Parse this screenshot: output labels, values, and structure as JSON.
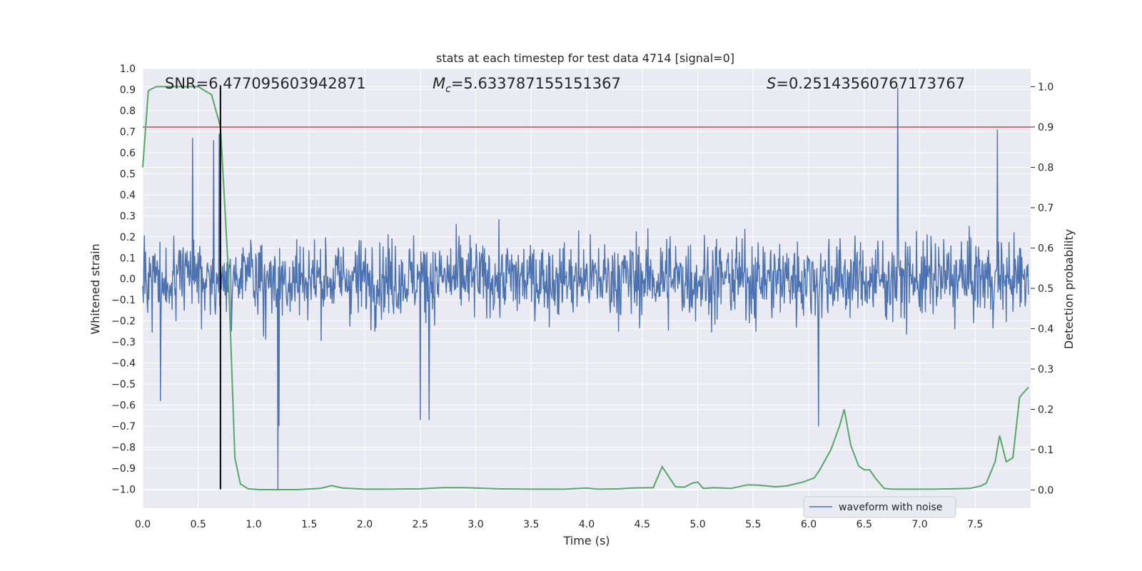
{
  "chart_data": {
    "type": "line",
    "title": "stats at each timestep for test data 4714 [signal=0]",
    "xlabel": "Time (s)",
    "ylabel_left": "Whitened strain",
    "ylabel_right": "Detection probability",
    "xlim": [
      0.0,
      8.0
    ],
    "ylim_left": [
      -1.09,
      1.0
    ],
    "ylim_right": [
      -0.045,
      1.045
    ],
    "x_ticks": [
      0.0,
      0.5,
      1.0,
      1.5,
      2.0,
      2.5,
      3.0,
      3.5,
      4.0,
      4.5,
      5.0,
      5.5,
      6.0,
      6.5,
      7.0,
      7.5
    ],
    "x_tick_labels": [
      "0.0",
      "0.5",
      "1.0",
      "1.5",
      "2.0",
      "2.5",
      "3.0",
      "3.5",
      "4.0",
      "4.5",
      "5.0",
      "5.5",
      "6.0",
      "6.5",
      "7.0",
      "7.5"
    ],
    "y_left_ticks": [
      1.0,
      0.9,
      0.8,
      0.7,
      0.6,
      0.5,
      0.4,
      0.3,
      0.2,
      0.1,
      0.0,
      -0.1,
      -0.2,
      -0.3,
      -0.4,
      -0.5,
      -0.6,
      -0.7,
      -0.8,
      -0.9,
      -1.0
    ],
    "y_left_tick_labels": [
      "1.0",
      "0.9",
      "0.8",
      "0.7",
      "0.6",
      "0.5",
      "0.4",
      "0.3",
      "0.2",
      "0.1",
      "0.0",
      "−0.1",
      "−0.2",
      "−0.3",
      "−0.4",
      "−0.5",
      "−0.6",
      "−0.7",
      "−0.8",
      "−0.9",
      "−1.0"
    ],
    "y_right_ticks": [
      1.0,
      0.9,
      0.8,
      0.7,
      0.6,
      0.5,
      0.4,
      0.3,
      0.2,
      0.1,
      0.0
    ],
    "y_right_tick_labels": [
      "1.0",
      "0.9",
      "0.8",
      "0.7",
      "0.6",
      "0.5",
      "0.4",
      "0.3",
      "0.2",
      "0.1",
      "0.0"
    ],
    "annotations": {
      "snr": "SNR=6.477095603942871",
      "mc_symbol": "M",
      "mc_sub": "c",
      "mc_value": "=5.633787155151367",
      "s_symbol": "S",
      "s_value": "=0.25143560767173767"
    },
    "legend": {
      "label": "waveform with noise",
      "location": "lower-right"
    },
    "waveform": {
      "name": "waveform with noise",
      "color": "#4c72b0",
      "samples": 1600,
      "amplitude_envelope": [
        0.0,
        0.42,
        0.42
      ],
      "notable_spikes": [
        {
          "x": 0.45,
          "y": 0.67
        },
        {
          "x": 0.64,
          "y": 0.66
        },
        {
          "x": 0.69,
          "y": 0.69
        },
        {
          "x": 1.22,
          "y": -1.0
        },
        {
          "x": 1.23,
          "y": -0.7
        },
        {
          "x": 0.16,
          "y": -0.58
        },
        {
          "x": 2.5,
          "y": -0.67
        },
        {
          "x": 2.58,
          "y": -0.67
        },
        {
          "x": 6.09,
          "y": -0.7
        },
        {
          "x": 6.8,
          "y": 0.91
        },
        {
          "x": 7.7,
          "y": 0.71
        }
      ]
    },
    "detection_probability": {
      "name": "detection probability",
      "color": "#55a868",
      "x": [
        0.0,
        0.05,
        0.12,
        0.2,
        0.3,
        0.4,
        0.5,
        0.56,
        0.62,
        0.7,
        0.77,
        0.83,
        0.88,
        0.95,
        1.05,
        1.2,
        1.4,
        1.6,
        1.7,
        1.8,
        2.0,
        2.2,
        2.5,
        2.7,
        2.9,
        3.0,
        3.2,
        3.5,
        3.8,
        4.0,
        4.1,
        4.3,
        4.4,
        4.6,
        4.68,
        4.8,
        4.88,
        4.95,
        5.0,
        5.05,
        5.15,
        5.3,
        5.45,
        5.55,
        5.7,
        5.8,
        5.95,
        6.05,
        6.1,
        6.2,
        6.28,
        6.32,
        6.38,
        6.45,
        6.5,
        6.55,
        6.6,
        6.68,
        6.75,
        6.9,
        7.1,
        7.3,
        7.45,
        7.55,
        7.6,
        7.68,
        7.72,
        7.78,
        7.84,
        7.9,
        7.98
      ],
      "y": [
        0.8,
        0.99,
        1.0,
        1.0,
        1.0,
        1.0,
        1.0,
        0.99,
        0.98,
        0.9,
        0.55,
        0.08,
        0.015,
        0.003,
        0.001,
        0.001,
        0.001,
        0.004,
        0.011,
        0.005,
        0.002,
        0.002,
        0.003,
        0.006,
        0.006,
        0.005,
        0.003,
        0.002,
        0.002,
        0.005,
        0.002,
        0.003,
        0.005,
        0.006,
        0.058,
        0.008,
        0.007,
        0.017,
        0.02,
        0.004,
        0.006,
        0.004,
        0.013,
        0.012,
        0.008,
        0.01,
        0.02,
        0.03,
        0.05,
        0.1,
        0.16,
        0.2,
        0.11,
        0.06,
        0.05,
        0.05,
        0.03,
        0.004,
        0.002,
        0.002,
        0.002,
        0.003,
        0.004,
        0.01,
        0.017,
        0.07,
        0.135,
        0.07,
        0.08,
        0.23,
        0.255
      ]
    },
    "threshold": {
      "y_right": 0.9,
      "color": "#c44e52"
    },
    "marker_line": {
      "x": 0.7,
      "y_left_from": -1.0,
      "y_left_to": 0.92,
      "color": "#000000"
    }
  }
}
